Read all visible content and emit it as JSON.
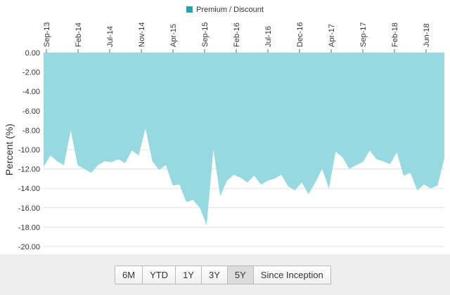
{
  "chart_data": {
    "type": "area",
    "title": "",
    "xlabel": "",
    "ylabel": "Percent (%)",
    "ylim": [
      -20,
      0
    ],
    "ytick_labels": [
      "0.00",
      "-2.00",
      "-4.00",
      "-6.00",
      "-8.00",
      "-10.00",
      "-12.00",
      "-14.00",
      "-16.00",
      "-18.00",
      "-20.00"
    ],
    "xtick_labels": [
      "Sep-13",
      "Feb-14",
      "Jul-14",
      "Nov-14",
      "Apr-15",
      "Sep-15",
      "Feb-16",
      "Jul-16",
      "Dec-16",
      "Apr-17",
      "Sep-17",
      "Feb-18",
      "Jun-18"
    ],
    "grid": true,
    "legend_position": "top-center",
    "series": [
      {
        "name": "Premium / Discount",
        "color": "#97d9e1",
        "x": [
          "2013-09",
          "2013-10",
          "2013-11",
          "2013-12",
          "2014-01",
          "2014-02",
          "2014-03",
          "2014-04",
          "2014-05",
          "2014-06",
          "2014-07",
          "2014-08",
          "2014-09",
          "2014-10",
          "2014-11",
          "2014-12",
          "2015-01",
          "2015-02",
          "2015-03",
          "2015-04",
          "2015-05",
          "2015-06",
          "2015-07",
          "2015-08",
          "2015-09",
          "2015-10",
          "2015-11",
          "2015-12",
          "2016-01",
          "2016-02",
          "2016-03",
          "2016-04",
          "2016-05",
          "2016-06",
          "2016-07",
          "2016-08",
          "2016-09",
          "2016-10",
          "2016-11",
          "2016-12",
          "2017-01",
          "2017-02",
          "2017-03",
          "2017-04",
          "2017-05",
          "2017-06",
          "2017-07",
          "2017-08",
          "2017-09",
          "2017-10",
          "2017-11",
          "2017-12",
          "2018-01",
          "2018-02",
          "2018-03",
          "2018-04",
          "2018-05",
          "2018-06",
          "2018-07",
          "2018-08"
        ],
        "values": [
          -11.8,
          -10.6,
          -11.2,
          -11.6,
          -8.0,
          -11.6,
          -12.0,
          -12.4,
          -11.6,
          -11.2,
          -11.3,
          -11.0,
          -11.4,
          -10.1,
          -10.6,
          -7.8,
          -11.2,
          -12.1,
          -11.6,
          -13.7,
          -13.6,
          -15.4,
          -15.2,
          -16.0,
          -17.8,
          -10.0,
          -14.8,
          -13.2,
          -12.6,
          -12.9,
          -13.4,
          -12.7,
          -13.6,
          -13.2,
          -13.0,
          -12.6,
          -13.8,
          -14.2,
          -13.4,
          -14.6,
          -13.4,
          -12.0,
          -14.0,
          -10.2,
          -10.8,
          -12.0,
          -11.6,
          -11.3,
          -10.1,
          -11.0,
          -11.2,
          -11.5,
          -10.3,
          -12.7,
          -12.4,
          -14.2,
          -13.6,
          -14.0,
          -13.7,
          -10.9
        ]
      }
    ]
  },
  "range_selector": {
    "buttons": [
      "6M",
      "YTD",
      "1Y",
      "3Y",
      "5Y",
      "Since Inception"
    ],
    "active": "5Y"
  }
}
